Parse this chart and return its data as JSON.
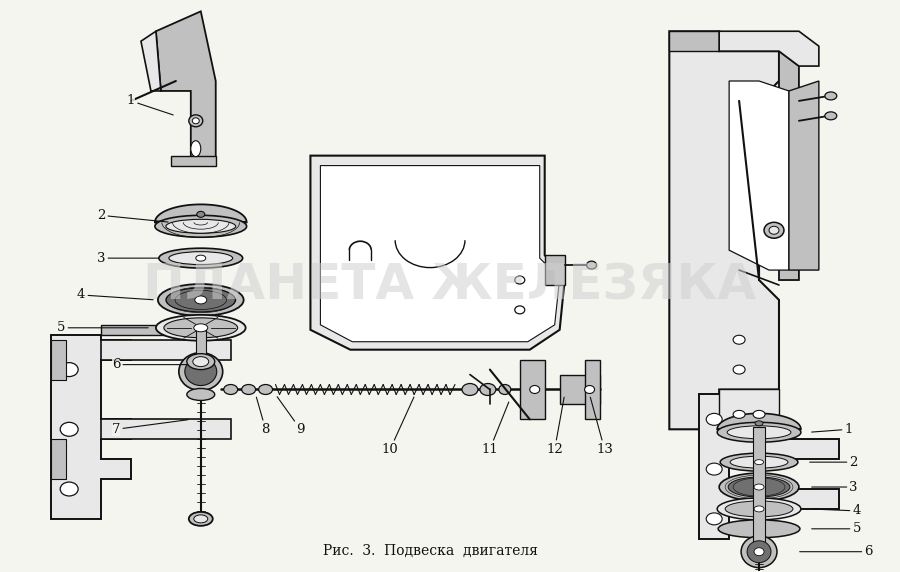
{
  "title": "Рис.  3.  Подвеска  двигателя",
  "title_fontsize": 10,
  "title_fontfamily": "DejaVu Serif",
  "background_color": "#f5f5f0",
  "watermark_text": "ПЛАНЕТА ЖЕЛЕЗЯКА",
  "watermark_color": "#d0d0d0",
  "watermark_alpha": 0.55,
  "watermark_fontsize": 36,
  "fig_width": 9.0,
  "fig_height": 5.72,
  "dpi": 100,
  "label_fontsize": 9.5,
  "edge_color": "#111111",
  "fill_light": "#e8e8e8",
  "fill_mid": "#c0c0c0",
  "fill_dark": "#888888",
  "fill_rubber": "#707070"
}
